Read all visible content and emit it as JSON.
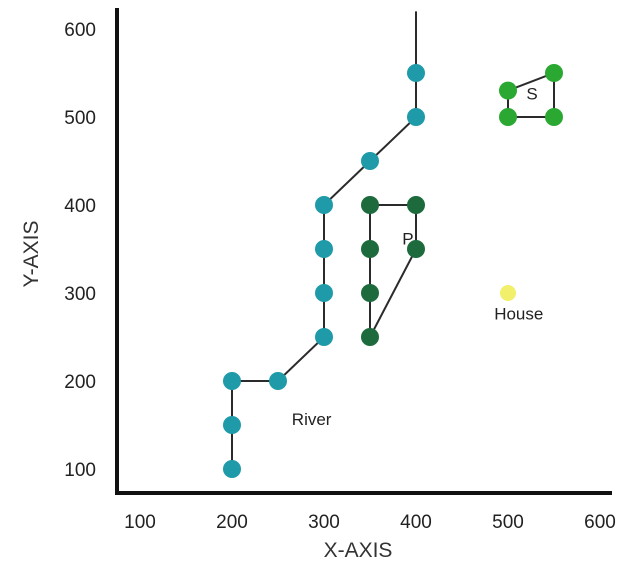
{
  "chart_data": {
    "type": "scatter",
    "title": "",
    "xlabel": "X-AXIS",
    "ylabel": "Y-AXIS",
    "xlim": [
      100,
      600
    ],
    "ylim": [
      100,
      600
    ],
    "xticks": [
      100,
      200,
      300,
      400,
      500,
      600
    ],
    "yticks": [
      100,
      200,
      300,
      400,
      500,
      600
    ],
    "grid": false,
    "series": [
      {
        "name": "River",
        "color": "#1f9aa8",
        "line_color": "#2b2b2b",
        "points": [
          [
            200,
            100
          ],
          [
            200,
            150
          ],
          [
            200,
            200
          ],
          [
            250,
            200
          ],
          [
            300,
            250
          ],
          [
            300,
            300
          ],
          [
            300,
            350
          ],
          [
            300,
            400
          ],
          [
            350,
            450
          ],
          [
            400,
            500
          ],
          [
            400,
            550
          ]
        ],
        "extend_to": [
          400,
          620
        ]
      },
      {
        "name": "P",
        "color": "#1d6b3d",
        "line_color": "#2b2b2b",
        "points": [
          [
            350,
            400
          ],
          [
            400,
            400
          ],
          [
            400,
            350
          ],
          [
            350,
            250
          ],
          [
            350,
            300
          ],
          [
            350,
            350
          ]
        ],
        "closed": true
      },
      {
        "name": "S",
        "color": "#2aa832",
        "line_color": "#2b2b2b",
        "points": [
          [
            500,
            500
          ],
          [
            500,
            530
          ],
          [
            550,
            550
          ],
          [
            550,
            500
          ]
        ],
        "closed": true
      },
      {
        "name": "House",
        "color": "#f2ef6a",
        "line_color": "#2b2b2b",
        "points": [
          [
            500,
            300
          ]
        ]
      }
    ],
    "annotations": [
      {
        "text": "River",
        "x": 265,
        "y": 150
      },
      {
        "text": "P",
        "x": 385,
        "y": 355
      },
      {
        "text": "S",
        "x": 520,
        "y": 520
      },
      {
        "text": "House",
        "x": 485,
        "y": 270
      }
    ]
  }
}
